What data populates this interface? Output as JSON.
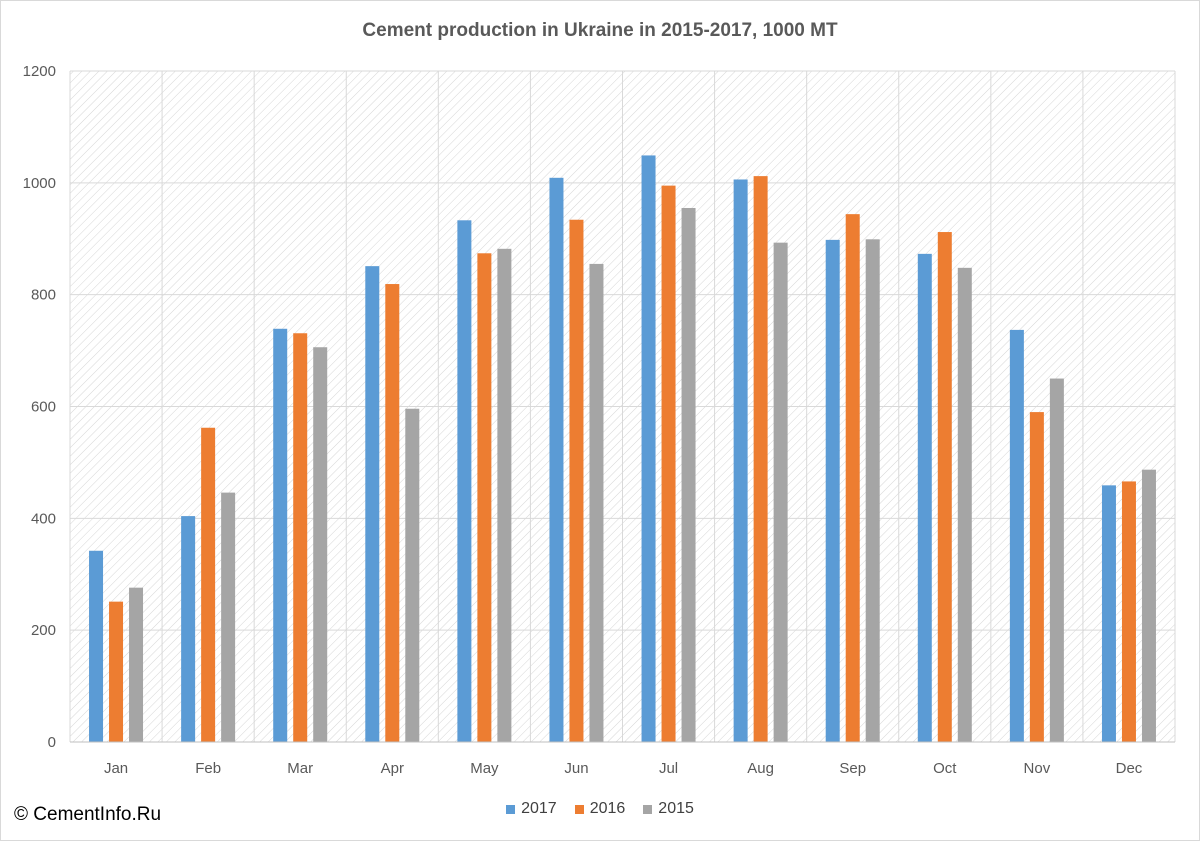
{
  "chart_data": {
    "type": "bar",
    "title": "Cement production in Ukraine in 2015-2017, 1000 MT",
    "xlabel": "",
    "ylabel": "",
    "categories": [
      "Jan",
      "Feb",
      "Mar",
      "Apr",
      "May",
      "Jun",
      "Jul",
      "Aug",
      "Sep",
      "Oct",
      "Nov",
      "Dec"
    ],
    "series": [
      {
        "name": "2017",
        "color": "#5b9bd5",
        "values": [
          342,
          404,
          739,
          851,
          933,
          1009,
          1049,
          1006,
          898,
          873,
          737,
          459
        ]
      },
      {
        "name": "2016",
        "color": "#ed7d31",
        "values": [
          251,
          562,
          731,
          819,
          874,
          934,
          995,
          1012,
          944,
          912,
          590,
          466
        ]
      },
      {
        "name": "2015",
        "color": "#a5a5a5",
        "values": [
          276,
          446,
          706,
          596,
          882,
          855,
          955,
          893,
          899,
          848,
          650,
          487
        ]
      }
    ],
    "ylim": [
      0,
      1200
    ],
    "yticks": [
      0,
      200,
      400,
      600,
      800,
      1000,
      1200
    ],
    "grid": true,
    "legend_position": "bottom"
  },
  "footer": {
    "copyright": "© CementInfo.Ru"
  }
}
